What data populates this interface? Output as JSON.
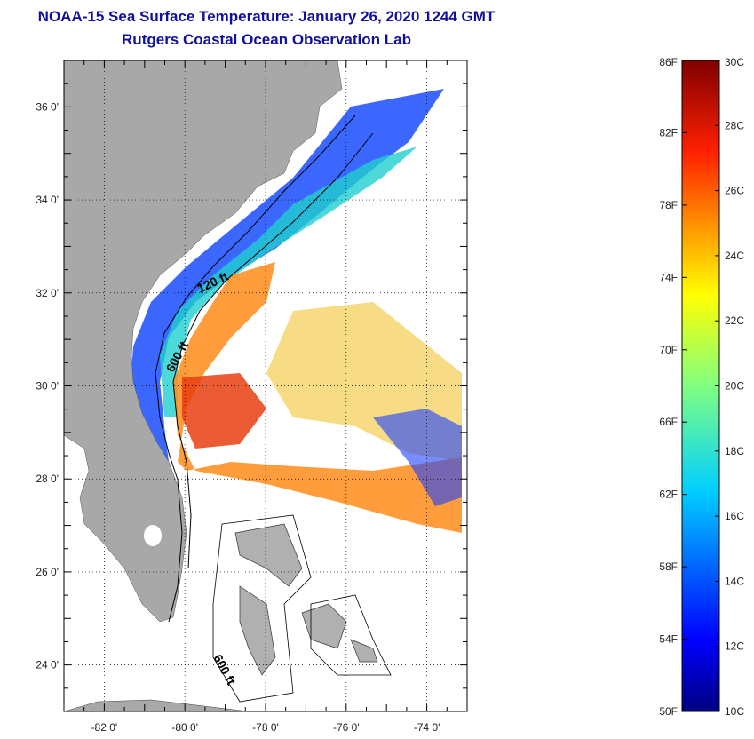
{
  "header": {
    "title": "NOAA-15 Sea Surface Temperature:  January 26, 2020 1244 GMT",
    "subtitle": "Rutgers Coastal Ocean Observation Lab"
  },
  "map": {
    "lon_labels": [
      "-82 0'",
      "-80 0'",
      "-78 0'",
      "-76 0'",
      "-74 0'"
    ],
    "lon_values": [
      -82,
      -80,
      -78,
      -76,
      -74
    ],
    "lat_labels": [
      "36 0'",
      "34 0'",
      "32 0'",
      "30 0'",
      "28 0'",
      "26 0'",
      "24 0'"
    ],
    "lat_values": [
      36,
      34,
      32,
      30,
      28,
      26,
      24
    ],
    "lon_range": [
      -83,
      -73
    ],
    "lat_range": [
      23,
      37
    ],
    "contour_labels": [
      "120 ft",
      "600 ft",
      "600 ft"
    ]
  },
  "colorbar": {
    "fahrenheit_labels": [
      "86F",
      "82F",
      "78F",
      "74F",
      "70F",
      "66F",
      "62F",
      "58F",
      "54F",
      "50F"
    ],
    "fahrenheit_values": [
      86,
      82,
      78,
      74,
      70,
      66,
      62,
      58,
      54,
      50
    ],
    "celsius_labels": [
      "30C",
      "28C",
      "26C",
      "24C",
      "22C",
      "20C",
      "18C",
      "16C",
      "14C",
      "12C",
      "10C"
    ],
    "celsius_values": [
      30,
      28,
      26,
      24,
      22,
      20,
      18,
      16,
      14,
      12,
      10
    ],
    "range_c": [
      10,
      30
    ]
  }
}
